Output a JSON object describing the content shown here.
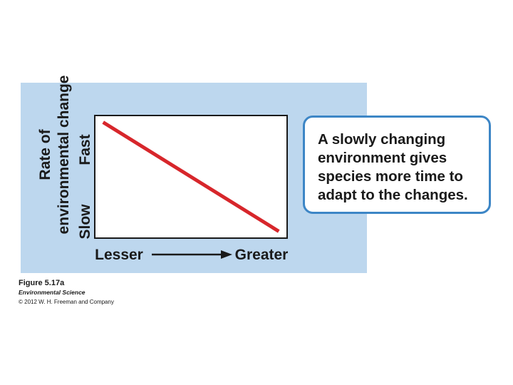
{
  "chart_data": {
    "type": "line",
    "x_axis": {
      "tick_labels": [
        "Lesser",
        "Greater"
      ],
      "arrow": true,
      "xlim": [
        0,
        1
      ]
    },
    "y_axis": {
      "label_lines": [
        "Rate of",
        "environmental change"
      ],
      "tick_labels": [
        "Slow",
        "Fast"
      ],
      "ylim": [
        0,
        1
      ]
    },
    "series": [
      {
        "color": "#d7262b",
        "points": [
          {
            "x": 0.04,
            "y": 0.95
          },
          {
            "x": 0.96,
            "y": 0.05
          }
        ]
      }
    ],
    "grid": false
  },
  "callout": {
    "text": "A slowly changing environment gives species more time to adapt to the changes.",
    "border_color": "#3d86c6"
  },
  "caption": {
    "figure": "Figure 5.17a",
    "book": "Environmental Science",
    "copyright": "© 2012 W. H. Freeman and Company"
  },
  "colors": {
    "panel_background": "#bdd7ee",
    "axis_text": "#1a1a1a"
  }
}
